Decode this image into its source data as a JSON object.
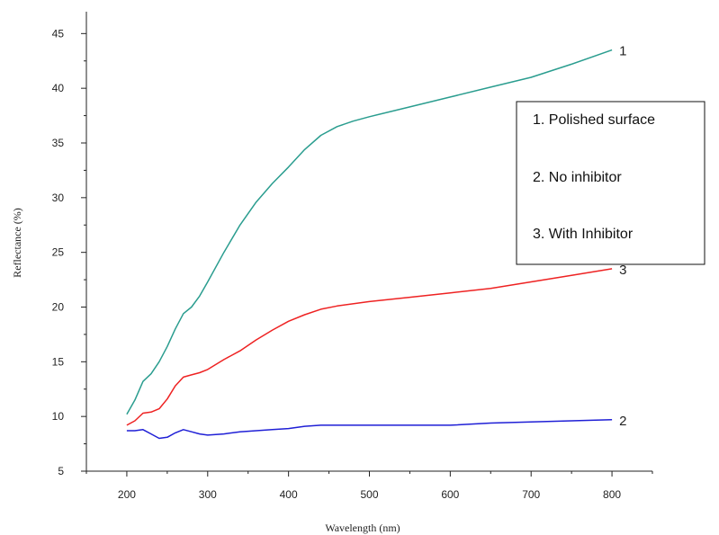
{
  "chart_data": {
    "type": "line",
    "xlabel": "Wavelength (nm)",
    "ylabel": "Reflectance (%)",
    "xlim": [
      150,
      850
    ],
    "ylim": [
      5,
      47
    ],
    "xticks": [
      200,
      300,
      400,
      500,
      600,
      700,
      800
    ],
    "yticks": [
      5,
      10,
      15,
      20,
      25,
      30,
      35,
      40,
      45
    ],
    "grid": false,
    "legend_placement": "right",
    "legend": [
      "1. Polished surface",
      "2. No inhibitor",
      "3. With Inhibitor"
    ],
    "series": [
      {
        "end_label": "1",
        "color": "#2a9d8f",
        "x": [
          200,
          210,
          220,
          230,
          240,
          250,
          260,
          270,
          280,
          290,
          300,
          320,
          340,
          360,
          380,
          400,
          420,
          440,
          460,
          480,
          500,
          550,
          600,
          650,
          700,
          750,
          800
        ],
        "y": [
          10.2,
          11.5,
          13.2,
          13.9,
          15.0,
          16.4,
          18.0,
          19.4,
          20.0,
          21.0,
          22.3,
          25.0,
          27.5,
          29.6,
          31.3,
          32.8,
          34.4,
          35.7,
          36.5,
          37.0,
          37.4,
          38.3,
          39.2,
          40.1,
          41.0,
          42.2,
          43.5
        ]
      },
      {
        "end_label": "2",
        "color": "#1f1fd6",
        "x": [
          200,
          210,
          220,
          230,
          240,
          250,
          260,
          270,
          280,
          290,
          300,
          320,
          340,
          360,
          380,
          400,
          420,
          440,
          460,
          500,
          550,
          600,
          650,
          700,
          750,
          800
        ],
        "y": [
          8.7,
          8.7,
          8.8,
          8.4,
          8.0,
          8.1,
          8.5,
          8.8,
          8.6,
          8.4,
          8.3,
          8.4,
          8.6,
          8.7,
          8.8,
          8.9,
          9.1,
          9.2,
          9.2,
          9.2,
          9.2,
          9.2,
          9.4,
          9.5,
          9.6,
          9.7
        ]
      },
      {
        "end_label": "3",
        "color": "#ee2222",
        "x": [
          200,
          210,
          220,
          230,
          240,
          250,
          260,
          270,
          280,
          290,
          300,
          320,
          340,
          360,
          380,
          400,
          420,
          440,
          460,
          500,
          550,
          600,
          650,
          700,
          750,
          800
        ],
        "y": [
          9.2,
          9.6,
          10.3,
          10.4,
          10.7,
          11.6,
          12.8,
          13.6,
          13.8,
          14.0,
          14.3,
          15.2,
          16.0,
          17.0,
          17.9,
          18.7,
          19.3,
          19.8,
          20.1,
          20.5,
          20.9,
          21.3,
          21.7,
          22.3,
          22.9,
          23.5
        ]
      }
    ]
  }
}
